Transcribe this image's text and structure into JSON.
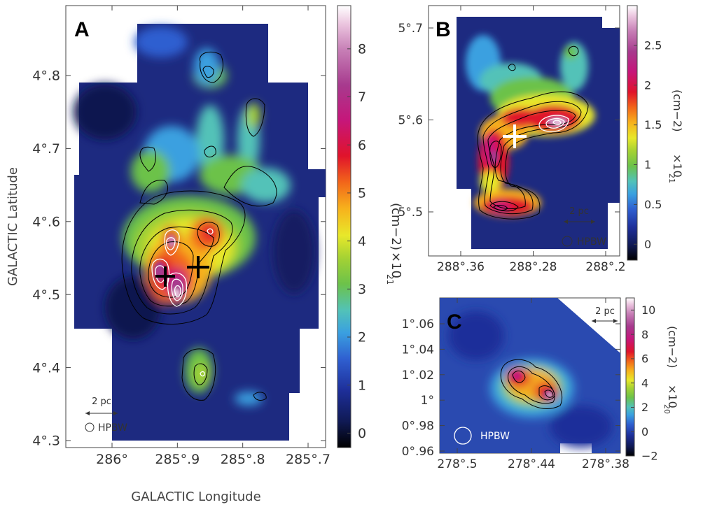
{
  "figure": {
    "xlabel": "GALACTIC Longitude",
    "ylabel": "GALACTIC Latitude"
  },
  "chart_data": [
    {
      "type": "heatmap",
      "panel": "A",
      "x_ticks": [
        "286°",
        "285°.9",
        "285°.8",
        "285°.7"
      ],
      "x_tick_values": [
        285.96,
        285.88,
        285.8,
        285.72
      ],
      "y_ticks": [
        "4°.3",
        "4°.4",
        "4°.5",
        "4°.6",
        "4°.7",
        "4°.8"
      ],
      "y_tick_values": [
        4.3,
        4.4,
        4.5,
        4.6,
        4.7,
        4.8
      ],
      "colorbar": {
        "label": "(cm−2)",
        "multiplier": "×10",
        "exponent": "21",
        "ticks": [
          "0",
          "1",
          "2",
          "3",
          "4",
          "5",
          "6",
          "7",
          "8"
        ],
        "range": [
          -0.3,
          8.9
        ]
      },
      "scalebar": "2 pc",
      "beam_label": "HPBW",
      "markers": [
        {
          "label": "+",
          "l": 285.89,
          "b": 4.527
        },
        {
          "label": "+",
          "l": 285.865,
          "b": 4.542
        }
      ]
    },
    {
      "type": "heatmap",
      "panel": "B",
      "x_ticks": [
        "288°.36",
        "288°.28",
        "288°.2"
      ],
      "x_tick_values": [
        288.36,
        288.28,
        288.2
      ],
      "y_ticks": [
        "5°.5",
        "5°.6",
        "5°.7"
      ],
      "y_tick_values": [
        5.5,
        5.6,
        5.7
      ],
      "colorbar": {
        "label": "(cm−2)",
        "multiplier": "×10",
        "exponent": "21",
        "ticks": [
          "0",
          "0.5",
          "1",
          "1.5",
          "2",
          "2.5"
        ],
        "range": [
          -0.2,
          3.0
        ]
      },
      "scalebar": "2 pc",
      "beam_label": "HPBW",
      "markers": [
        {
          "label": "+",
          "l": 288.283,
          "b": 5.582
        }
      ]
    },
    {
      "type": "heatmap",
      "panel": "C",
      "x_ticks": [
        "278°.5",
        "278°.44",
        "278°.38"
      ],
      "x_tick_values": [
        278.5,
        278.44,
        278.38
      ],
      "y_ticks": [
        "0°.96",
        "0°.98",
        "1°",
        "1°.02",
        "1°.04",
        "1°.06"
      ],
      "y_tick_values": [
        0.96,
        0.98,
        1.0,
        1.02,
        1.04,
        1.06
      ],
      "colorbar": {
        "label": "(cm−2)",
        "multiplier": "×10",
        "exponent": "20",
        "ticks": [
          "−2",
          "0",
          "2",
          "4",
          "6",
          "8",
          "10"
        ],
        "range": [
          -2.0,
          11.0
        ]
      },
      "scalebar": "2 pc",
      "beam_label": "HPBW",
      "markers": []
    }
  ]
}
